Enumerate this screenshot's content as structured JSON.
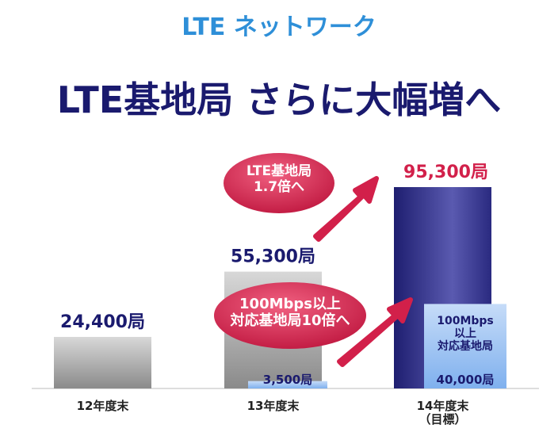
{
  "chart_data": {
    "type": "bar",
    "kicker": "LTE ネットワーク",
    "title": "LTE基地局 さらに大幅増へ",
    "categories": [
      "12年度末",
      "13年度末",
      "14年度末\n（目標）"
    ],
    "series": [
      {
        "name": "LTE基地局",
        "colors": [
          "#9c9c9c",
          "#9c9c9c",
          "#2f2f8c"
        ],
        "values": [
          24400,
          55300,
          95300
        ],
        "value_labels": [
          "24,400局",
          "55,300局",
          "95,300局"
        ]
      },
      {
        "name": "100Mbps\n以上\n対応基地局",
        "color": "#9cc4f4",
        "values": [
          null,
          3500,
          40000
        ],
        "value_labels": [
          null,
          "3,500局",
          "40,000局"
        ]
      }
    ],
    "annotations": [
      "LTE基地局\n1.7倍へ",
      "100Mbps以上\n対応基地局10倍へ"
    ]
  }
}
